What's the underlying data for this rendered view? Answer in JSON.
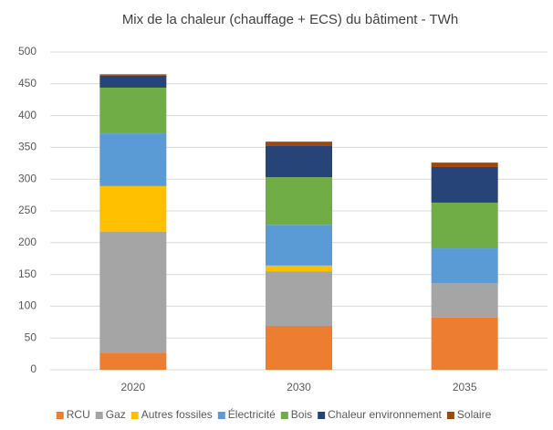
{
  "chart_data": {
    "type": "stacked_bar",
    "title": "Mix de la chaleur (chauffage + ECS) du bâtiment - TWh",
    "categories": [
      "2020",
      "2030",
      "2035"
    ],
    "series": [
      {
        "name": "RCU",
        "color": "#ed7d31",
        "values": [
          27,
          69,
          82
        ]
      },
      {
        "name": "Gaz",
        "color": "#a5a5a5",
        "values": [
          190,
          86,
          54
        ]
      },
      {
        "name": "Autres fossiles",
        "color": "#ffc000",
        "values": [
          72,
          9,
          0
        ]
      },
      {
        "name": "Électricité",
        "color": "#5b9bd5",
        "values": [
          83,
          64,
          55
        ]
      },
      {
        "name": "Bois",
        "color": "#70ad47",
        "values": [
          72,
          75,
          72
        ]
      },
      {
        "name": "Chaleur environnement",
        "color": "#264478",
        "values": [
          19,
          50,
          56
        ]
      },
      {
        "name": "Solaire",
        "color": "#9e480e",
        "values": [
          2,
          6,
          7
        ]
      }
    ],
    "ylim": [
      0,
      500
    ],
    "yticks": [
      0,
      50,
      100,
      150,
      200,
      250,
      300,
      350,
      400,
      450,
      500
    ],
    "grid": true,
    "legend": "bottom"
  }
}
